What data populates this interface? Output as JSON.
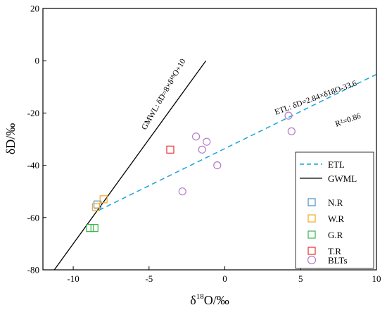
{
  "chart_data": {
    "type": "scatter",
    "xlabel_base": "δ",
    "xlabel_sup": "18",
    "xlabel_rest": "O/‰",
    "ylabel": "δD/‰",
    "xlim": [
      -12,
      10
    ],
    "ylim": [
      -80,
      20
    ],
    "xticks": [
      -10,
      -5,
      0,
      5,
      10
    ],
    "yticks": [
      -80,
      -60,
      -40,
      -20,
      0,
      20
    ],
    "xtick_labels": [
      "-10",
      "-5",
      "0",
      "5",
      "10"
    ],
    "ytick_labels": [
      "-80",
      "-60",
      "-40",
      "-20",
      "0",
      "20"
    ],
    "grid": false,
    "legend_position": "bottom-right",
    "lines": [
      {
        "name": "ETL",
        "slope": 2.84,
        "intercept": -33.6,
        "x_range": [
          -8.3,
          10
        ],
        "color": "#1aa3d9",
        "dash": true
      },
      {
        "name": "GWML",
        "slope": 8,
        "intercept": 10,
        "x_range": [
          -11.25,
          -1.25
        ],
        "color": "#000000",
        "dash": false
      }
    ],
    "series": [
      {
        "name": "N.R",
        "marker": "square",
        "color": "#4a90c8",
        "points": [
          [
            -8.4,
            -55
          ]
        ]
      },
      {
        "name": "W.R",
        "marker": "square",
        "color": "#f5a623",
        "points": [
          [
            -8.0,
            -53
          ],
          [
            -8.5,
            -56
          ]
        ]
      },
      {
        "name": "G.R",
        "marker": "square",
        "color": "#3cb44b",
        "points": [
          [
            -8.9,
            -64
          ],
          [
            -8.6,
            -64
          ]
        ]
      },
      {
        "name": "T.R",
        "marker": "square",
        "color": "#e8302b",
        "points": [
          [
            -3.6,
            -34
          ]
        ]
      },
      {
        "name": "BLTs",
        "marker": "circle",
        "color": "#b07cc6",
        "points": [
          [
            -1.9,
            -29
          ],
          [
            -1.2,
            -31
          ],
          [
            -1.5,
            -34
          ],
          [
            -0.5,
            -40
          ],
          [
            -2.8,
            -50
          ],
          [
            4.2,
            -21
          ],
          [
            4.4,
            -27
          ]
        ]
      }
    ],
    "annotations": {
      "gmwl_label": "GMWL: δD=8×δ¹⁸O+10",
      "etl_label": "ETL: δD=2.84×δ18O-33.6",
      "r2_label": "R²=0.86"
    }
  }
}
